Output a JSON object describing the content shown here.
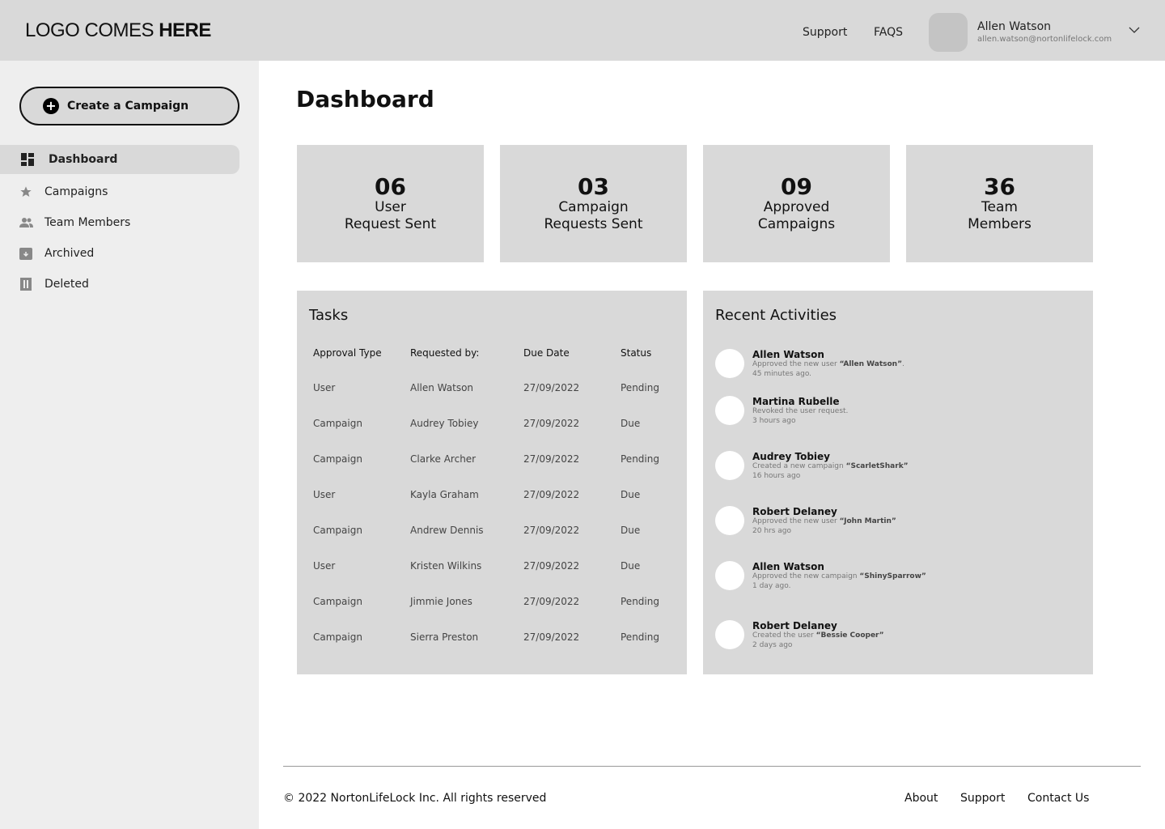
{
  "header": {
    "logo_regular": "LOGO COMES ",
    "logo_bold": "HERE",
    "links": [
      "Support",
      "FAQS"
    ],
    "user": {
      "name": "Allen Watson",
      "email": "allen.watson@nortonlifelock.com"
    }
  },
  "sidebar": {
    "create_label": "Create a Campaign",
    "items": [
      {
        "label": "Dashboard",
        "icon": "dashboard-icon",
        "active": true
      },
      {
        "label": "Campaigns",
        "icon": "star-icon"
      },
      {
        "label": "Team Members",
        "icon": "people-icon"
      },
      {
        "label": "Archived",
        "icon": "archive-icon"
      },
      {
        "label": "Deleted",
        "icon": "trash-icon"
      }
    ]
  },
  "main": {
    "title": "Dashboard",
    "stats": [
      {
        "value": "06",
        "label": "User\nRequest Sent"
      },
      {
        "value": "03",
        "label": "Campaign\nRequests Sent"
      },
      {
        "value": "09",
        "label": "Approved\nCampaigns"
      },
      {
        "value": "36",
        "label": "Team\nMembers"
      }
    ],
    "tasks": {
      "title": "Tasks",
      "columns": [
        "Approval Type",
        "Requested by:",
        "Due Date",
        "Status"
      ],
      "rows": [
        [
          "User",
          "Allen Watson",
          "27/09/2022",
          "Pending"
        ],
        [
          "Campaign",
          "Audrey Tobiey",
          "27/09/2022",
          "Due"
        ],
        [
          "Campaign",
          "Clarke Archer",
          "27/09/2022",
          "Pending"
        ],
        [
          "User",
          "Kayla Graham",
          "27/09/2022",
          "Due"
        ],
        [
          "Campaign",
          "Andrew Dennis",
          "27/09/2022",
          "Due"
        ],
        [
          "User",
          "Kristen Wilkins",
          "27/09/2022",
          "Due"
        ],
        [
          "Campaign",
          "Jimmie Jones",
          "27/09/2022",
          "Pending"
        ],
        [
          "Campaign",
          "Sierra Preston",
          "27/09/2022",
          "Pending"
        ]
      ]
    },
    "activities": {
      "title": "Recent Activities",
      "items": [
        {
          "name": "Allen Watson",
          "action": "Approved the new user ",
          "target": "“Allen Watson”",
          "suffix": ".",
          "time": "45 minutes ago."
        },
        {
          "name": "Martina Rubelle",
          "action": "Revoked the user request.",
          "target": "",
          "suffix": "",
          "time": "3 hours ago"
        },
        {
          "name": "Audrey Tobiey",
          "action": "Created a new campaign ",
          "target": "“ScarletShark”",
          "suffix": "",
          "time": "16 hours ago"
        },
        {
          "name": "Robert Delaney",
          "action": "Approved the new user ",
          "target": "“John Martin”",
          "suffix": "",
          "time": "20 hrs ago"
        },
        {
          "name": "Allen Watson",
          "action": "Approved the new campaign ",
          "target": "“ShinySparrow”",
          "suffix": "",
          "time": "1 day ago."
        },
        {
          "name": "Robert Delaney",
          "action": "Created the user ",
          "target": "“Bessie Cooper”",
          "suffix": "",
          "time": "2 days ago"
        }
      ]
    }
  },
  "footer": {
    "copyright": "© 2022 NortonLifeLock Inc. All rights reserved",
    "links": [
      "About",
      "Support",
      "Contact Us"
    ]
  }
}
